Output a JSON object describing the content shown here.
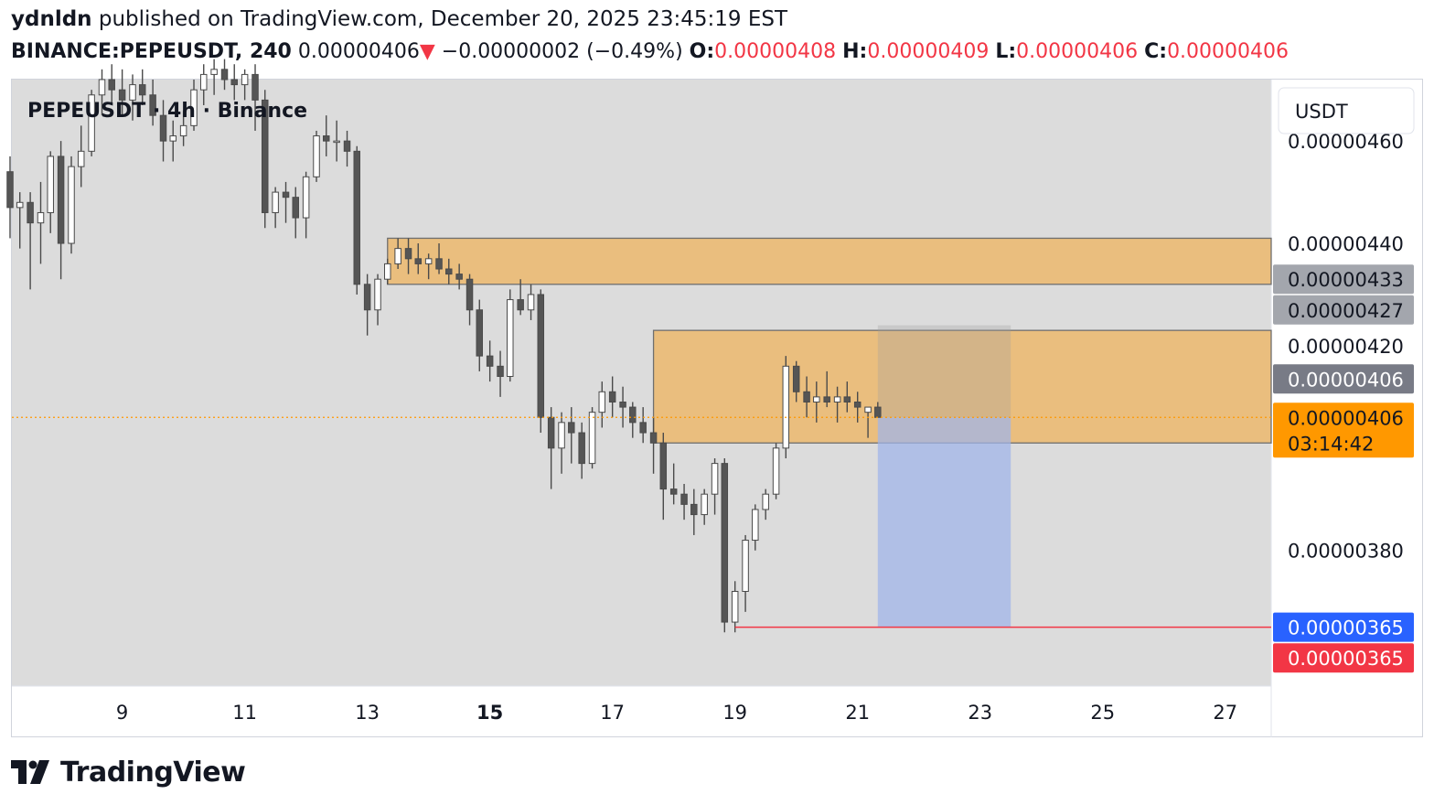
{
  "header": {
    "author": "ydnldn",
    "published_text": "published on TradingView.com, December 20, 2025 23:45:19 EST",
    "symbol": "BINANCE:PEPEUSDT, 240",
    "last_price": "0.00000406",
    "change_arrow": "▼",
    "change": "−0.00000002 (−0.49%)",
    "o_label": "O:",
    "o_value": "0.00000408",
    "h_label": "H:",
    "h_value": "0.00000409",
    "l_label": "L:",
    "l_value": "0.00000406",
    "c_label": "C:",
    "c_value": "0.00000406"
  },
  "chart_data": {
    "type": "candlestick",
    "title": "PEPEUSDT · 4h · Binance",
    "currency": "USDT",
    "y_unit": "1e-8 USDT",
    "ylim": [
      353.5,
      472
    ],
    "xlim": [
      7.2,
      27.75
    ],
    "x_ticks": [
      {
        "x": 9,
        "label": "9"
      },
      {
        "x": 11,
        "label": "11"
      },
      {
        "x": 13,
        "label": "13"
      },
      {
        "x": 15,
        "label": "15",
        "bold": true
      },
      {
        "x": 17,
        "label": "17"
      },
      {
        "x": 19,
        "label": "19"
      },
      {
        "x": 21,
        "label": "21"
      },
      {
        "x": 23,
        "label": "23"
      },
      {
        "x": 25,
        "label": "25"
      },
      {
        "x": 27,
        "label": "27"
      }
    ],
    "y_ticks": [
      {
        "value": 460,
        "label": "0.00000460"
      },
      {
        "value": 440,
        "label": "0.00000440"
      },
      {
        "value": 420,
        "label": "0.00000420"
      },
      {
        "value": 380,
        "label": "0.00000380"
      }
    ],
    "price_labels": [
      {
        "value": 433,
        "label": "0.00000433",
        "bg": "#a3a6ad",
        "fg": "#131722"
      },
      {
        "value": 427,
        "label": "0.00000427",
        "bg": "#a3a6ad",
        "fg": "#131722"
      },
      {
        "value": 413.5,
        "label": "0.00000406",
        "bg": "#787b86",
        "fg": "#ffffff"
      },
      {
        "value": 406,
        "label": "0.00000406",
        "sub": "03:14:42",
        "bg": "#ff9800",
        "fg": "#131722"
      },
      {
        "value": 365,
        "label": "0.00000365",
        "bg": "#2962ff",
        "fg": "#ffffff"
      },
      {
        "value": 359,
        "label": "0.00000365",
        "bg": "#f23645",
        "fg": "#ffffff"
      }
    ],
    "zones": [
      {
        "x0": 13.33,
        "x1": 27.75,
        "y0": 432,
        "y1": 441,
        "color": "#f0b35a"
      },
      {
        "x0": 17.67,
        "x1": 27.75,
        "y0": 401,
        "y1": 423,
        "color": "#f0b35a"
      }
    ],
    "position_box": {
      "x0": 21.33,
      "x1": 23.5,
      "entry": 406,
      "target": 424,
      "stop": 365
    },
    "stop_line": {
      "x0": 19.0,
      "x1": 27.75,
      "value": 365,
      "color": "#f23645"
    },
    "current_price_line": {
      "value": 406,
      "color": "#ff9800"
    },
    "candles": [
      {
        "t": 7.17,
        "o": 454,
        "h": 457,
        "l": 441,
        "c": 447
      },
      {
        "t": 7.33,
        "o": 447,
        "h": 450,
        "l": 439,
        "c": 448
      },
      {
        "t": 7.5,
        "o": 448,
        "h": 450,
        "l": 431,
        "c": 444
      },
      {
        "t": 7.67,
        "o": 444,
        "h": 452,
        "l": 436,
        "c": 446
      },
      {
        "t": 7.83,
        "o": 446,
        "h": 458,
        "l": 442,
        "c": 457
      },
      {
        "t": 8.0,
        "o": 457,
        "h": 460,
        "l": 433,
        "c": 440
      },
      {
        "t": 8.17,
        "o": 440,
        "h": 457,
        "l": 438,
        "c": 455
      },
      {
        "t": 8.33,
        "o": 455,
        "h": 463,
        "l": 451,
        "c": 458
      },
      {
        "t": 8.5,
        "o": 458,
        "h": 470,
        "l": 457,
        "c": 469
      },
      {
        "t": 8.67,
        "o": 469,
        "h": 474,
        "l": 465,
        "c": 472
      },
      {
        "t": 8.83,
        "o": 472,
        "h": 475,
        "l": 467,
        "c": 470
      },
      {
        "t": 9.0,
        "o": 470,
        "h": 474,
        "l": 465,
        "c": 468
      },
      {
        "t": 9.17,
        "o": 468,
        "h": 473,
        "l": 464,
        "c": 471
      },
      {
        "t": 9.33,
        "o": 471,
        "h": 474,
        "l": 467,
        "c": 469
      },
      {
        "t": 9.5,
        "o": 469,
        "h": 472,
        "l": 463,
        "c": 465
      },
      {
        "t": 9.67,
        "o": 465,
        "h": 468,
        "l": 456,
        "c": 460
      },
      {
        "t": 9.83,
        "o": 460,
        "h": 464,
        "l": 456,
        "c": 461
      },
      {
        "t": 10.0,
        "o": 461,
        "h": 466,
        "l": 459,
        "c": 463
      },
      {
        "t": 10.17,
        "o": 463,
        "h": 472,
        "l": 462,
        "c": 470
      },
      {
        "t": 10.33,
        "o": 470,
        "h": 475,
        "l": 467,
        "c": 473
      },
      {
        "t": 10.5,
        "o": 473,
        "h": 476,
        "l": 469,
        "c": 474
      },
      {
        "t": 10.67,
        "o": 474,
        "h": 476,
        "l": 470,
        "c": 472
      },
      {
        "t": 10.83,
        "o": 472,
        "h": 475,
        "l": 468,
        "c": 471
      },
      {
        "t": 11.0,
        "o": 471,
        "h": 474,
        "l": 468,
        "c": 473
      },
      {
        "t": 11.17,
        "o": 473,
        "h": 475,
        "l": 462,
        "c": 468
      },
      {
        "t": 11.33,
        "o": 468,
        "h": 470,
        "l": 443,
        "c": 446
      },
      {
        "t": 11.5,
        "o": 446,
        "h": 451,
        "l": 443,
        "c": 450
      },
      {
        "t": 11.67,
        "o": 450,
        "h": 452,
        "l": 444,
        "c": 449
      },
      {
        "t": 11.83,
        "o": 449,
        "h": 451,
        "l": 441,
        "c": 445
      },
      {
        "t": 12.0,
        "o": 445,
        "h": 454,
        "l": 441,
        "c": 453
      },
      {
        "t": 12.17,
        "o": 453,
        "h": 462,
        "l": 452,
        "c": 461
      },
      {
        "t": 12.33,
        "o": 461,
        "h": 465,
        "l": 457,
        "c": 460
      },
      {
        "t": 12.5,
        "o": 460,
        "h": 464,
        "l": 456,
        "c": 460
      },
      {
        "t": 12.67,
        "o": 460,
        "h": 462,
        "l": 455,
        "c": 458
      },
      {
        "t": 12.83,
        "o": 458,
        "h": 459,
        "l": 430,
        "c": 432
      },
      {
        "t": 13.0,
        "o": 432,
        "h": 434,
        "l": 422,
        "c": 427
      },
      {
        "t": 13.17,
        "o": 427,
        "h": 434,
        "l": 424,
        "c": 433
      },
      {
        "t": 13.33,
        "o": 433,
        "h": 437,
        "l": 432,
        "c": 436
      },
      {
        "t": 13.5,
        "o": 436,
        "h": 441,
        "l": 435,
        "c": 439
      },
      {
        "t": 13.67,
        "o": 439,
        "h": 441,
        "l": 434,
        "c": 437
      },
      {
        "t": 13.83,
        "o": 437,
        "h": 440,
        "l": 434,
        "c": 436
      },
      {
        "t": 14.0,
        "o": 436,
        "h": 438,
        "l": 433,
        "c": 437
      },
      {
        "t": 14.17,
        "o": 437,
        "h": 440,
        "l": 434,
        "c": 435
      },
      {
        "t": 14.33,
        "o": 435,
        "h": 437,
        "l": 432,
        "c": 434
      },
      {
        "t": 14.5,
        "o": 434,
        "h": 436,
        "l": 431,
        "c": 433
      },
      {
        "t": 14.67,
        "o": 433,
        "h": 434,
        "l": 424,
        "c": 427
      },
      {
        "t": 14.83,
        "o": 427,
        "h": 429,
        "l": 415,
        "c": 418
      },
      {
        "t": 15.0,
        "o": 418,
        "h": 421,
        "l": 413,
        "c": 416
      },
      {
        "t": 15.17,
        "o": 416,
        "h": 419,
        "l": 410,
        "c": 414
      },
      {
        "t": 15.33,
        "o": 414,
        "h": 431,
        "l": 413,
        "c": 429
      },
      {
        "t": 15.5,
        "o": 429,
        "h": 433,
        "l": 426,
        "c": 427
      },
      {
        "t": 15.67,
        "o": 427,
        "h": 432,
        "l": 425,
        "c": 430
      },
      {
        "t": 15.83,
        "o": 430,
        "h": 431,
        "l": 403,
        "c": 406
      },
      {
        "t": 16.0,
        "o": 406,
        "h": 408,
        "l": 392,
        "c": 400
      },
      {
        "t": 16.17,
        "o": 400,
        "h": 407,
        "l": 395,
        "c": 405
      },
      {
        "t": 16.33,
        "o": 405,
        "h": 408,
        "l": 397,
        "c": 403
      },
      {
        "t": 16.5,
        "o": 403,
        "h": 405,
        "l": 394,
        "c": 397
      },
      {
        "t": 16.67,
        "o": 397,
        "h": 408,
        "l": 396,
        "c": 407
      },
      {
        "t": 16.83,
        "o": 407,
        "h": 413,
        "l": 404,
        "c": 411
      },
      {
        "t": 17.0,
        "o": 411,
        "h": 414,
        "l": 406,
        "c": 409
      },
      {
        "t": 17.17,
        "o": 409,
        "h": 412,
        "l": 404,
        "c": 408
      },
      {
        "t": 17.33,
        "o": 408,
        "h": 409,
        "l": 402,
        "c": 405
      },
      {
        "t": 17.5,
        "o": 405,
        "h": 408,
        "l": 401,
        "c": 403
      },
      {
        "t": 17.67,
        "o": 403,
        "h": 406,
        "l": 395,
        "c": 401
      },
      {
        "t": 17.83,
        "o": 401,
        "h": 403,
        "l": 386,
        "c": 392
      },
      {
        "t": 18.0,
        "o": 392,
        "h": 397,
        "l": 389,
        "c": 391
      },
      {
        "t": 18.17,
        "o": 391,
        "h": 393,
        "l": 386,
        "c": 389
      },
      {
        "t": 18.33,
        "o": 389,
        "h": 392,
        "l": 383,
        "c": 387
      },
      {
        "t": 18.5,
        "o": 387,
        "h": 392,
        "l": 385,
        "c": 391
      },
      {
        "t": 18.67,
        "o": 391,
        "h": 398,
        "l": 387,
        "c": 397
      },
      {
        "t": 18.83,
        "o": 397,
        "h": 398,
        "l": 364,
        "c": 366
      },
      {
        "t": 19.0,
        "o": 366,
        "h": 374,
        "l": 364,
        "c": 372
      },
      {
        "t": 19.17,
        "o": 372,
        "h": 383,
        "l": 368,
        "c": 382
      },
      {
        "t": 19.33,
        "o": 382,
        "h": 389,
        "l": 380,
        "c": 388
      },
      {
        "t": 19.5,
        "o": 388,
        "h": 392,
        "l": 386,
        "c": 391
      },
      {
        "t": 19.67,
        "o": 391,
        "h": 401,
        "l": 390,
        "c": 400
      },
      {
        "t": 19.83,
        "o": 400,
        "h": 418,
        "l": 398,
        "c": 416
      },
      {
        "t": 20.0,
        "o": 416,
        "h": 417,
        "l": 409,
        "c": 411
      },
      {
        "t": 20.17,
        "o": 411,
        "h": 414,
        "l": 406,
        "c": 409
      },
      {
        "t": 20.33,
        "o": 409,
        "h": 413,
        "l": 405,
        "c": 410
      },
      {
        "t": 20.5,
        "o": 410,
        "h": 415,
        "l": 408,
        "c": 409
      },
      {
        "t": 20.67,
        "o": 409,
        "h": 412,
        "l": 405,
        "c": 410
      },
      {
        "t": 20.83,
        "o": 410,
        "h": 413,
        "l": 407,
        "c": 409
      },
      {
        "t": 21.0,
        "o": 409,
        "h": 411,
        "l": 405,
        "c": 408
      },
      {
        "t": 21.17,
        "o": 407,
        "h": 408,
        "l": 402,
        "c": 408
      },
      {
        "t": 21.33,
        "o": 408,
        "h": 409,
        "l": 406,
        "c": 406
      }
    ]
  },
  "brand": {
    "name": "TradingView"
  }
}
